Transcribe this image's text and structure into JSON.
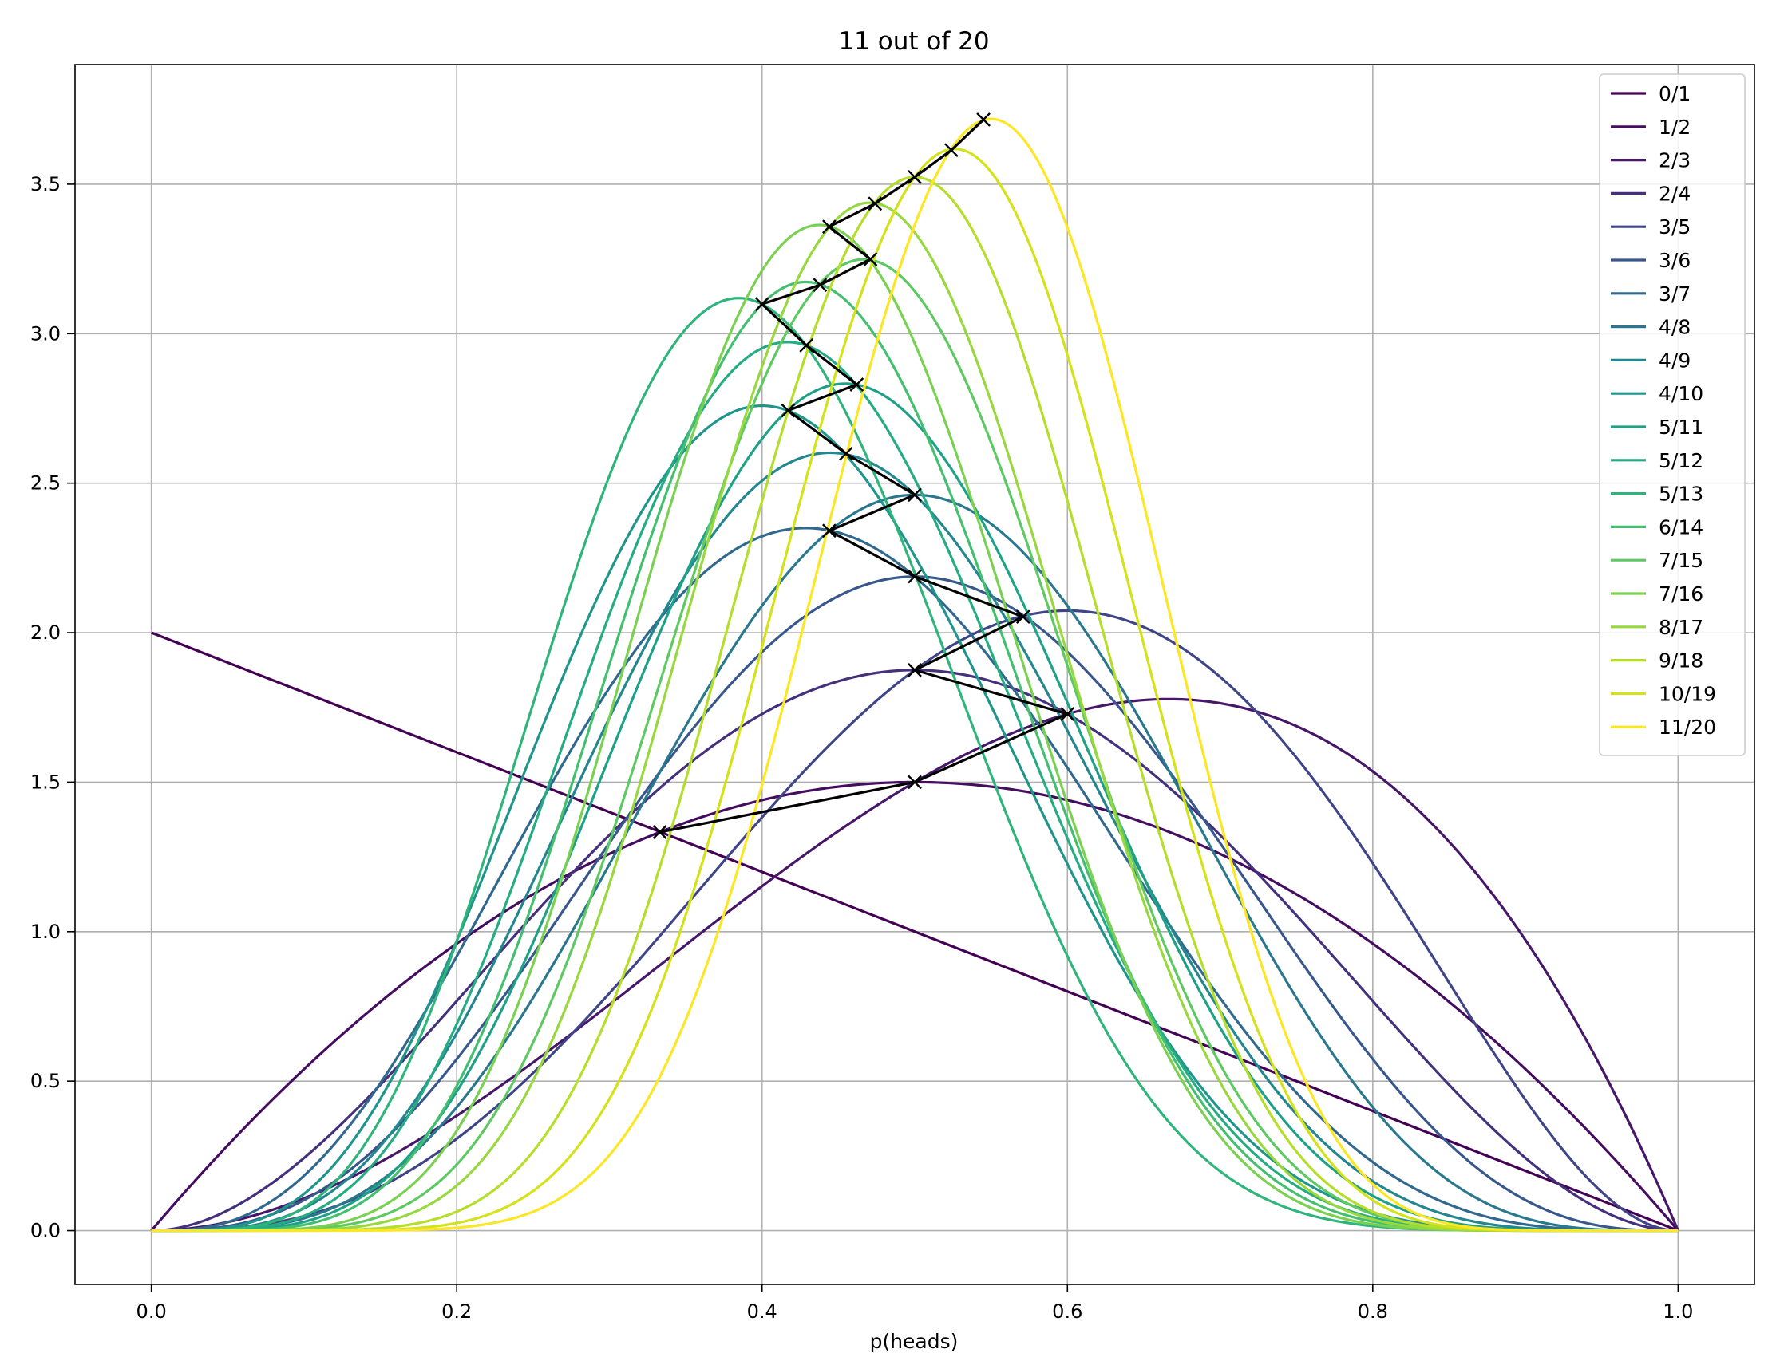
{
  "chart_data": {
    "type": "line",
    "title": "11 out of 20",
    "xlabel": "p(heads)",
    "ylabel": "",
    "xlim": [
      -0.05,
      1.05
    ],
    "ylim": [
      -0.18,
      3.9
    ],
    "xticks": [
      0.0,
      0.2,
      0.4,
      0.6,
      0.8,
      1.0
    ],
    "xtick_labels": [
      "0.0",
      "0.2",
      "0.4",
      "0.6",
      "0.8",
      "1.0"
    ],
    "yticks": [
      0.0,
      0.5,
      1.0,
      1.5,
      2.0,
      2.5,
      3.0,
      3.5
    ],
    "ytick_labels": [
      "0.0",
      "0.5",
      "1.0",
      "1.5",
      "2.0",
      "2.5",
      "3.0",
      "3.5"
    ],
    "grid": true,
    "legend_position": "top-right",
    "series": [
      {
        "name": "0/1",
        "heads": 0,
        "flips": 1,
        "color": "#440154"
      },
      {
        "name": "1/2",
        "heads": 1,
        "flips": 2,
        "color": "#440d5f"
      },
      {
        "name": "2/3",
        "heads": 2,
        "flips": 3,
        "color": "#471769"
      },
      {
        "name": "2/4",
        "heads": 2,
        "flips": 4,
        "color": "#45307c"
      },
      {
        "name": "3/5",
        "heads": 3,
        "flips": 5,
        "color": "#3f4587"
      },
      {
        "name": "3/6",
        "heads": 3,
        "flips": 6,
        "color": "#38588c"
      },
      {
        "name": "3/7",
        "heads": 3,
        "flips": 7,
        "color": "#31688e"
      },
      {
        "name": "4/8",
        "heads": 4,
        "flips": 8,
        "color": "#2a788e"
      },
      {
        "name": "4/9",
        "heads": 4,
        "flips": 9,
        "color": "#24868e"
      },
      {
        "name": "4/10",
        "heads": 4,
        "flips": 10,
        "color": "#1f958b"
      },
      {
        "name": "5/11",
        "heads": 5,
        "flips": 11,
        "color": "#1fa187"
      },
      {
        "name": "5/12",
        "heads": 5,
        "flips": 12,
        "color": "#25ac82"
      },
      {
        "name": "5/13",
        "heads": 5,
        "flips": 13,
        "color": "#2fb57c"
      },
      {
        "name": "6/14",
        "heads": 6,
        "flips": 14,
        "color": "#44bf70"
      },
      {
        "name": "7/15",
        "heads": 7,
        "flips": 15,
        "color": "#5ec962"
      },
      {
        "name": "7/16",
        "heads": 7,
        "flips": 16,
        "color": "#7ad151"
      },
      {
        "name": "8/17",
        "heads": 8,
        "flips": 17,
        "color": "#98d83e"
      },
      {
        "name": "9/18",
        "heads": 9,
        "flips": 18,
        "color": "#b5de2b"
      },
      {
        "name": "10/19",
        "heads": 10,
        "flips": 19,
        "color": "#d4e21a"
      },
      {
        "name": "11/20",
        "heads": 11,
        "flips": 20,
        "color": "#fde725"
      }
    ],
    "mode_path": {
      "color": "#000000",
      "marker": "x",
      "points": [
        [
          0.333,
          1.333
        ],
        [
          0.5,
          1.5
        ],
        [
          0.6,
          1.728
        ],
        [
          0.5,
          1.875
        ],
        [
          0.571,
          2.053
        ],
        [
          0.5,
          2.188
        ],
        [
          0.444,
          2.341
        ],
        [
          0.5,
          2.461
        ],
        [
          0.455,
          2.599
        ],
        [
          0.417,
          2.743
        ],
        [
          0.462,
          2.83
        ],
        [
          0.429,
          2.961
        ],
        [
          0.4,
          3.099
        ],
        [
          0.438,
          3.163
        ],
        [
          0.471,
          3.249
        ],
        [
          0.444,
          3.358
        ],
        [
          0.474,
          3.435
        ],
        [
          0.5,
          3.524
        ],
        [
          0.524,
          3.614
        ],
        [
          0.545,
          3.716
        ]
      ]
    }
  }
}
